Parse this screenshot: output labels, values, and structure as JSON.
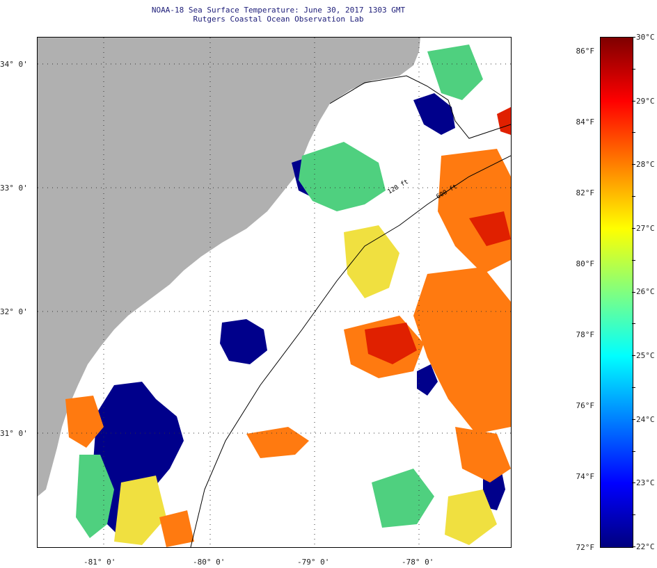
{
  "title": {
    "line1": "NOAA-18 Sea Surface Temperature:  June 30, 2017 1303 GMT",
    "line2": "Rutgers Coastal Ocean Observation Lab"
  },
  "map": {
    "lat_labels": [
      "34° 0'",
      "33° 0'",
      "32° 0'",
      "31° 0'"
    ],
    "lon_labels": [
      "-81° 0'",
      "-80° 0'",
      "-79° 0'",
      "-78° 0'"
    ],
    "isobath_labels": [
      "120 ft",
      "600 ft"
    ],
    "colors": {
      "land": "#b0b0b0",
      "cloud": "#ffffff",
      "cold": "#00008b",
      "warm": "#ff5a00"
    }
  },
  "colorbar": {
    "fahrenheit_labels": [
      "86°F",
      "84°F",
      "82°F",
      "80°F",
      "78°F",
      "76°F",
      "74°F",
      "72°F"
    ],
    "celsius_labels": [
      "30°C",
      "29°C",
      "28°C",
      "27°C",
      "26°C",
      "25°C",
      "24°C",
      "23°C",
      "22°C"
    ],
    "range_celsius": [
      22,
      30
    ],
    "range_fahrenheit": [
      72,
      86
    ],
    "stops": [
      "#00007f",
      "#0000ff",
      "#0080ff",
      "#00ffff",
      "#80ff80",
      "#ffff00",
      "#ff8000",
      "#ff0000",
      "#7f0000"
    ]
  }
}
